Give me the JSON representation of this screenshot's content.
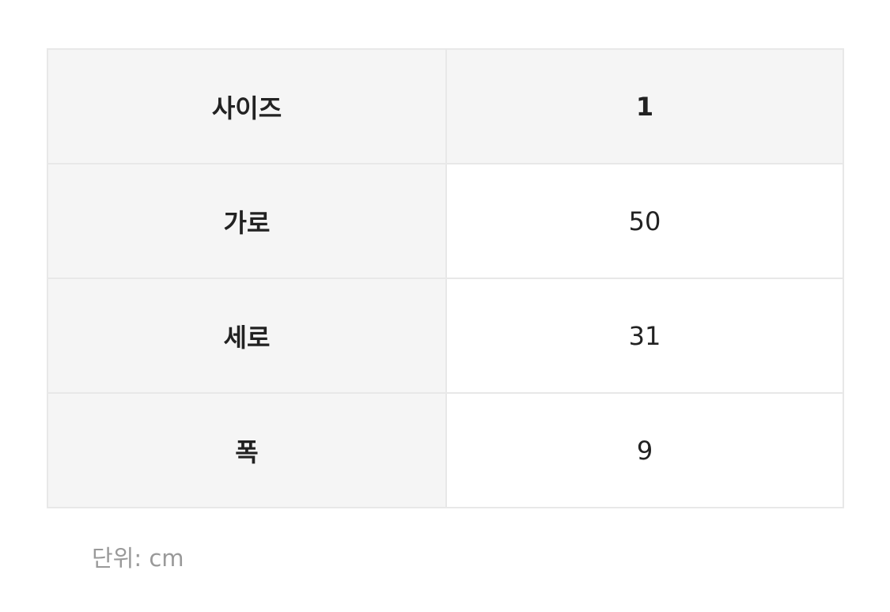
{
  "table": {
    "header": [
      "사이즈",
      "1"
    ],
    "rows": [
      [
        "가로",
        "50"
      ],
      [
        "세로",
        "31"
      ],
      [
        "폭",
        "9"
      ]
    ]
  },
  "unit": "단위: cm"
}
